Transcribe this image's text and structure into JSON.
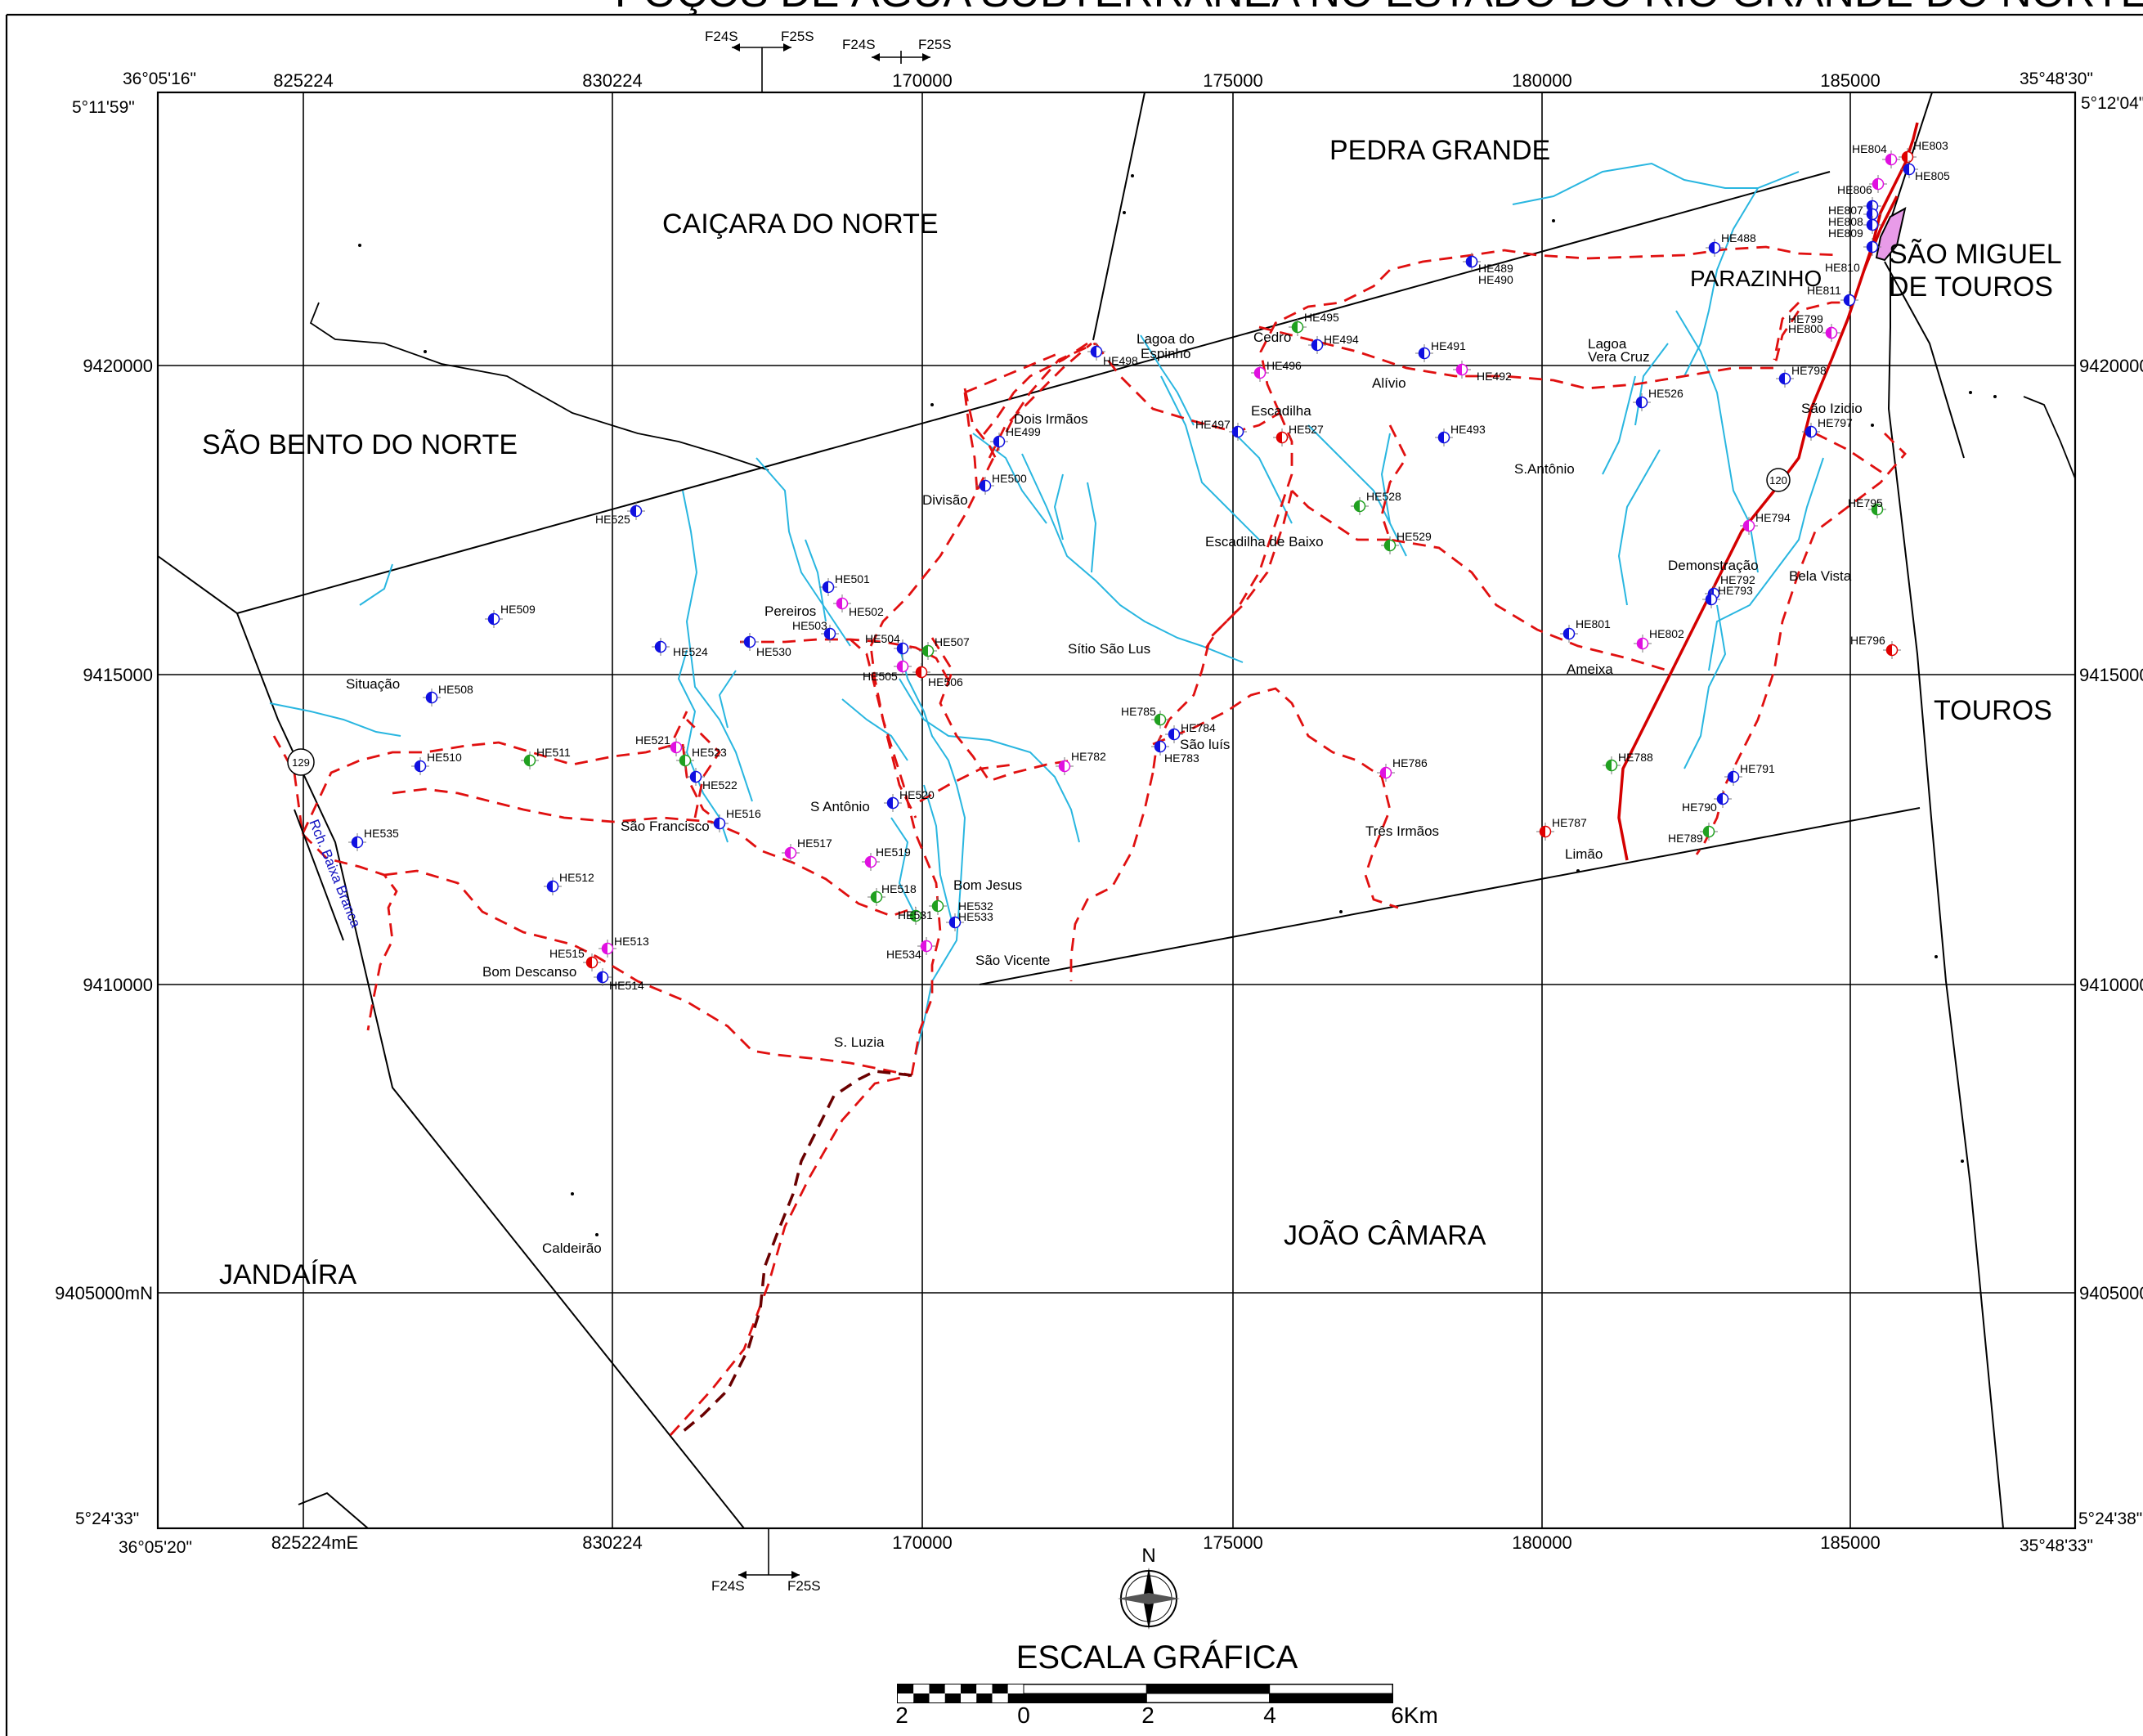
{
  "title": "POÇOS DE ÁGUA SUBTERRÂNEA NO ESTADO DO RIO GRANDE DO NORTE",
  "x_ticks": [
    "825224",
    "830224",
    "170000",
    "175000",
    "180000",
    "185000"
  ],
  "x_first_tick": "825224mE",
  "y_ticks": [
    "9420000",
    "9415000",
    "9410000",
    "9405000mN"
  ],
  "y_ticks_right": [
    "9420000",
    "9415000",
    "9410000",
    "9405000"
  ],
  "corners": {
    "tl_lon": "36°05'16\"",
    "tl_lat": "5°11'59\"",
    "tr_lon": "35°48'30\"",
    "tr_lat": "5°12'04\"",
    "bl_lon": "36°05'20\"",
    "bl_lat": "5°24'33\"",
    "br_lon": "35°48'33\"",
    "br_lat": "5°24'38\""
  },
  "zones": [
    {
      "left": "F24S",
      "right": "F25S"
    },
    {
      "left": "F24S",
      "right": "F25S"
    },
    {
      "left": "F24S",
      "right": "F25S"
    }
  ],
  "municipalities": [
    "PEDRA GRANDE",
    "CAIÇARA DO NORTE",
    "SÃO BENTO DO NORTE",
    "SÃO MIGUEL",
    "DE TOUROS",
    "PARAZINHO",
    "TOUROS",
    "JOÃO CÂMARA",
    "JANDAÍRA"
  ],
  "localities": [
    "Lagoa do",
    "Espinho",
    "Cedro",
    "Alívio",
    "Lagoa",
    "Vera Cruz",
    "Dois Irmãos",
    "Escadilha",
    "São Izidio",
    "Divisão",
    "S.Antônio",
    "Escadilha de Baixo",
    "Demonstração",
    "Bela Vista",
    "Pereiros",
    "Sítio São Lus",
    "Ameixa",
    "Situação",
    "São luís",
    "S Antônio",
    "São Francisco",
    "Três Irmãos",
    "Limão",
    "Bom Jesus",
    "Bom Descanso",
    "São Vicente",
    "S. Luzia",
    "Caldeirão"
  ],
  "road_markers": [
    "120",
    "129"
  ],
  "river_label": "Rch. Baixa Branca",
  "wells": [
    {
      "id": "HE803",
      "color": "#e00000"
    },
    {
      "id": "HE804",
      "color": "#e010e0"
    },
    {
      "id": "HE805",
      "color": "#1010e0"
    },
    {
      "id": "HE806",
      "color": "#e010e0"
    },
    {
      "id": "HE807",
      "color": "#1010e0"
    },
    {
      "id": "HE808",
      "color": "#1010e0"
    },
    {
      "id": "HE809",
      "color": "#1010e0"
    },
    {
      "id": "HE810",
      "color": "#1010e0"
    },
    {
      "id": "HE811",
      "color": "#1010e0"
    },
    {
      "id": "HE488",
      "color": "#1010e0"
    },
    {
      "id": "HE489",
      "color": "#1010e0"
    },
    {
      "id": "HE490",
      "color": "#1010e0"
    },
    {
      "id": "HE495",
      "color": "#20a020"
    },
    {
      "id": "HE494",
      "color": "#1010e0"
    },
    {
      "id": "HE491",
      "color": "#1010e0"
    },
    {
      "id": "HE492",
      "color": "#e010e0"
    },
    {
      "id": "HE498",
      "color": "#1010e0"
    },
    {
      "id": "HE496",
      "color": "#e010e0"
    },
    {
      "id": "HE799",
      "color": "#e010e0"
    },
    {
      "id": "HE800",
      "color": "#e010e0"
    },
    {
      "id": "HE798",
      "color": "#1010e0"
    },
    {
      "id": "HE526",
      "color": "#1010e0"
    },
    {
      "id": "HE497",
      "color": "#1010e0"
    },
    {
      "id": "HE527",
      "color": "#e00000"
    },
    {
      "id": "HE499",
      "color": "#1010e0"
    },
    {
      "id": "HE493",
      "color": "#1010e0"
    },
    {
      "id": "HE797",
      "color": "#1010e0"
    },
    {
      "id": "HE500",
      "color": "#1010e0"
    },
    {
      "id": "HE528",
      "color": "#20a020"
    },
    {
      "id": "HE795",
      "color": "#20a020"
    },
    {
      "id": "HE525",
      "color": "#1010e0"
    },
    {
      "id": "HE794",
      "color": "#e010e0"
    },
    {
      "id": "HE529",
      "color": "#20a020"
    },
    {
      "id": "HE501",
      "color": "#1010e0"
    },
    {
      "id": "HE792",
      "color": "#1010e0"
    },
    {
      "id": "HE793",
      "color": "#1010e0"
    },
    {
      "id": "HE509",
      "color": "#1010e0"
    },
    {
      "id": "HE502",
      "color": "#e010e0"
    },
    {
      "id": "HE503",
      "color": "#1010e0"
    },
    {
      "id": "HE801",
      "color": "#1010e0"
    },
    {
      "id": "HE504",
      "color": "#1010e0"
    },
    {
      "id": "HE507",
      "color": "#20a020"
    },
    {
      "id": "HE524",
      "color": "#1010e0"
    },
    {
      "id": "HE530",
      "color": "#1010e0"
    },
    {
      "id": "HE802",
      "color": "#e010e0"
    },
    {
      "id": "HE796",
      "color": "#e00000"
    },
    {
      "id": "HE505",
      "color": "#e010e0"
    },
    {
      "id": "HE506",
      "color": "#e00000"
    },
    {
      "id": "HE508",
      "color": "#1010e0"
    },
    {
      "id": "HE785",
      "color": "#20a020"
    },
    {
      "id": "HE784",
      "color": "#1010e0"
    },
    {
      "id": "HE783",
      "color": "#1010e0"
    },
    {
      "id": "HE521",
      "color": "#e010e0"
    },
    {
      "id": "HE523",
      "color": "#20a020"
    },
    {
      "id": "HE510",
      "color": "#1010e0"
    },
    {
      "id": "HE511",
      "color": "#20a020"
    },
    {
      "id": "HE782",
      "color": "#e010e0"
    },
    {
      "id": "HE788",
      "color": "#20a020"
    },
    {
      "id": "HE522",
      "color": "#1010e0"
    },
    {
      "id": "HE786",
      "color": "#e010e0"
    },
    {
      "id": "HE791",
      "color": "#1010e0"
    },
    {
      "id": "HE520",
      "color": "#1010e0"
    },
    {
      "id": "HE516",
      "color": "#1010e0"
    },
    {
      "id": "HE790",
      "color": "#1010e0"
    },
    {
      "id": "HE787",
      "color": "#e00000"
    },
    {
      "id": "HE789",
      "color": "#20a020"
    },
    {
      "id": "HE535",
      "color": "#1010e0"
    },
    {
      "id": "HE517",
      "color": "#e010e0"
    },
    {
      "id": "HE519",
      "color": "#e010e0"
    },
    {
      "id": "HE512",
      "color": "#1010e0"
    },
    {
      "id": "HE518",
      "color": "#20a020"
    },
    {
      "id": "HE532",
      "color": "#20a020"
    },
    {
      "id": "HE531",
      "color": "#20a020"
    },
    {
      "id": "HE533",
      "color": "#1010e0"
    },
    {
      "id": "HE513",
      "color": "#e010e0"
    },
    {
      "id": "HE534",
      "color": "#e010e0"
    },
    {
      "id": "HE515",
      "color": "#e00000"
    },
    {
      "id": "HE514",
      "color": "#1010e0"
    }
  ],
  "north_label": "N",
  "scale": {
    "title": "ESCALA GRÁFICA",
    "labels": [
      "2",
      "0",
      "2",
      "4",
      "6Km"
    ]
  },
  "colors": {
    "road": "#e01010",
    "river": "#29b6e0",
    "highway": "#d40000",
    "urban_area": "#e89be8"
  }
}
